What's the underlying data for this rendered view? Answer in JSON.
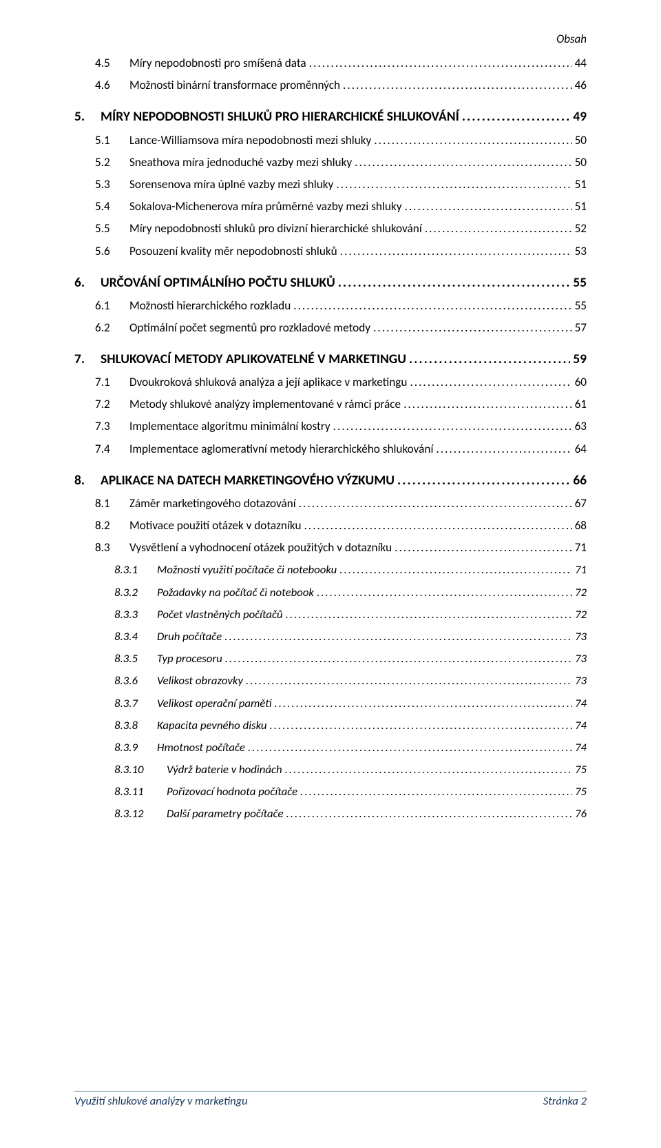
{
  "header": {
    "label": "Obsah"
  },
  "footer": {
    "left": "Využití shlukové analýzy v marketingu",
    "right": "Stránka 2"
  },
  "toc": [
    {
      "level": "l2",
      "num": "4.5",
      "title": "Míry nepodobnosti pro smíšená data",
      "page": "44"
    },
    {
      "level": "l2",
      "num": "4.6",
      "title": "Možnosti binární transformace proměnných",
      "page": "46"
    },
    {
      "level": "l1",
      "num": "5.",
      "title": "MÍRY NEPODOBNOSTI SHLUKŮ PRO HIERARCHICKÉ SHLUKOVÁNÍ",
      "page": "49"
    },
    {
      "level": "l2",
      "num": "5.1",
      "title": "Lance-Williamsova míra nepodobnosti mezi shluky",
      "page": "50"
    },
    {
      "level": "l2",
      "num": "5.2",
      "title": "Sneathova míra jednoduché vazby mezi shluky",
      "page": "50"
    },
    {
      "level": "l2",
      "num": "5.3",
      "title": "Sorensenova míra úplné vazby mezi shluky",
      "page": "51"
    },
    {
      "level": "l2",
      "num": "5.4",
      "title": "Sokalova-Michenerova míra průměrné vazby mezi shluky",
      "page": "51"
    },
    {
      "level": "l2",
      "num": "5.5",
      "title": "Míry nepodobnosti shluků pro divizní hierarchické shlukování",
      "page": "52"
    },
    {
      "level": "l2",
      "num": "5.6",
      "title": "Posouzení kvality měr nepodobností shluků",
      "page": "53"
    },
    {
      "level": "l1",
      "num": "6.",
      "title": "URČOVÁNÍ OPTIMÁLNÍHO POČTU SHLUKŮ",
      "page": "55"
    },
    {
      "level": "l2",
      "num": "6.1",
      "title": "Možnosti hierarchického rozkladu",
      "page": "55"
    },
    {
      "level": "l2",
      "num": "6.2",
      "title": "Optimální počet segmentů pro rozkladové metody",
      "page": "57"
    },
    {
      "level": "l1",
      "num": "7.",
      "title": "SHLUKOVACÍ METODY APLIKOVATELNÉ V MARKETINGU",
      "page": "59"
    },
    {
      "level": "l2",
      "num": "7.1",
      "title": "Dvoukroková shluková analýza a její aplikace v marketingu",
      "page": "60"
    },
    {
      "level": "l2",
      "num": "7.2",
      "title": "Metody shlukové analýzy implementované v rámci práce",
      "page": "61"
    },
    {
      "level": "l2",
      "num": "7.3",
      "title": "Implementace algoritmu minimální kostry",
      "page": "63"
    },
    {
      "level": "l2",
      "num": "7.4",
      "title": "Implementace aglomerativní metody hierarchického shlukování",
      "page": "64"
    },
    {
      "level": "l1",
      "num": "8.",
      "title": "APLIKACE NA DATECH MARKETINGOVÉHO VÝZKUMU",
      "page": "66"
    },
    {
      "level": "l2",
      "num": "8.1",
      "title": "Záměr marketingového dotazování",
      "page": "67"
    },
    {
      "level": "l2",
      "num": "8.2",
      "title": "Motivace použití otázek v dotazníku",
      "page": "68"
    },
    {
      "level": "l2",
      "num": "8.3",
      "title": "Vysvětlení a vyhodnocení otázek použitých v dotazníku",
      "page": "71"
    },
    {
      "level": "l3",
      "num": "8.3.1",
      "title": "Možnosti využití počítače či notebooku",
      "page": "71"
    },
    {
      "level": "l3",
      "num": "8.3.2",
      "title": "Požadavky na počítač či notebook",
      "page": "72"
    },
    {
      "level": "l3",
      "num": "8.3.3",
      "title": "Počet vlastněných počítačů",
      "page": "72"
    },
    {
      "level": "l3",
      "num": "8.3.4",
      "title": "Druh počítače",
      "page": "73"
    },
    {
      "level": "l3",
      "num": "8.3.5",
      "title": "Typ procesoru",
      "page": "73"
    },
    {
      "level": "l3",
      "num": "8.3.6",
      "title": "Velikost obrazovky",
      "page": "73"
    },
    {
      "level": "l3",
      "num": "8.3.7",
      "title": "Velikost operační paměti",
      "page": "74"
    },
    {
      "level": "l3",
      "num": "8.3.8",
      "title": "Kapacita pevného disku",
      "page": "74"
    },
    {
      "level": "l3",
      "num": "8.3.9",
      "title": "Hmotnost počítače",
      "page": "74"
    },
    {
      "level": "l3b",
      "num": "8.3.10",
      "title": "Výdrž baterie v hodinách",
      "page": "75"
    },
    {
      "level": "l3b",
      "num": "8.3.11",
      "title": "Pořizovací hodnota počítače",
      "page": "75"
    },
    {
      "level": "l3b",
      "num": "8.3.12",
      "title": "Další parametry počítače",
      "page": "76"
    }
  ]
}
